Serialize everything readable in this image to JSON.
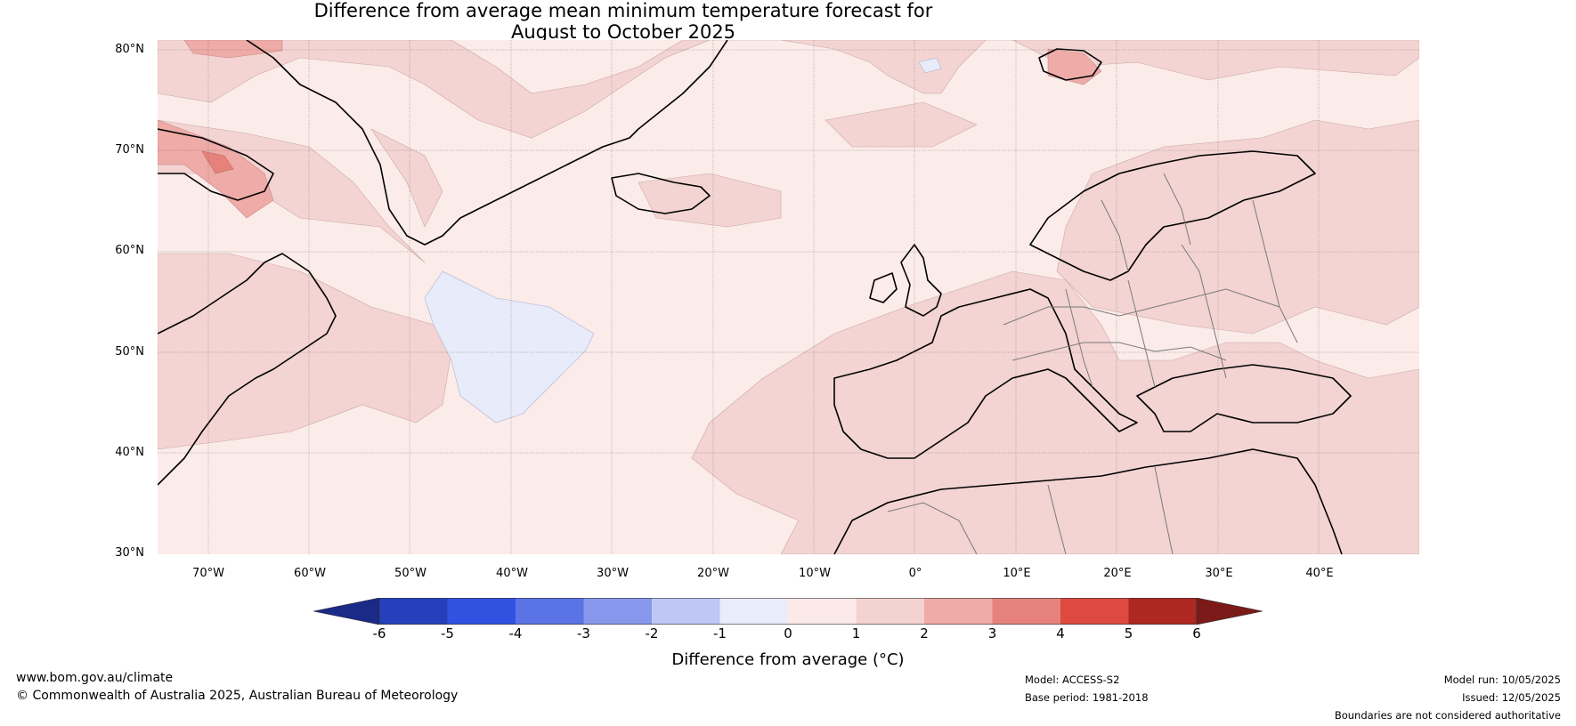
{
  "title_line1": "Difference from average mean minimum temperature forecast for",
  "title_line2": "August to October 2025",
  "lat_labels": [
    "80°N",
    "70°N",
    "60°N",
    "50°N",
    "40°N",
    "30°N"
  ],
  "lon_labels": [
    "70°W",
    "60°W",
    "50°W",
    "40°W",
    "30°W",
    "20°W",
    "10°W",
    "0°",
    "10°E",
    "20°E",
    "30°E",
    "40°E"
  ],
  "map": {
    "lon_range": [
      -75,
      50
    ],
    "lat_range": [
      30,
      81
    ],
    "colors": {
      "ocean_base": "#fbebe9",
      "anom_1_2": "#f3d4d2",
      "anom_2_3": "#eeaba7",
      "anom_3_4": "#e6827b",
      "anom_neg": "#e8ebf9",
      "coast": "#000000",
      "border": "#7a7a7a",
      "grid": "#555555"
    }
  },
  "colorbar": {
    "ticks": [
      "-6",
      "-5",
      "-4",
      "-3",
      "-2",
      "-1",
      "0",
      "1",
      "2",
      "3",
      "4",
      "5",
      "6"
    ],
    "colors": [
      "#1b2a86",
      "#2540ba",
      "#3152e0",
      "#5a74e6",
      "#8798ec",
      "#bec7f5",
      "#e9ecfb",
      "#fceae8",
      "#f4d2d0",
      "#eeaba7",
      "#e6827b",
      "#dd4a3f",
      "#ad2821",
      "#7b1a18"
    ],
    "label": "Difference from average (°C)"
  },
  "footer": {
    "url": "www.bom.gov.au/climate",
    "copyright": "© Commonwealth of Australia 2025, Australian Bureau of Meteorology",
    "model": "Model: ACCESS-S2",
    "base_period": "Base period: 1981-2018",
    "model_run": "Model run: 10/05/2025",
    "issued": "Issued: 12/05/2025",
    "disclaimer": "Boundaries are not considered authoritative"
  }
}
